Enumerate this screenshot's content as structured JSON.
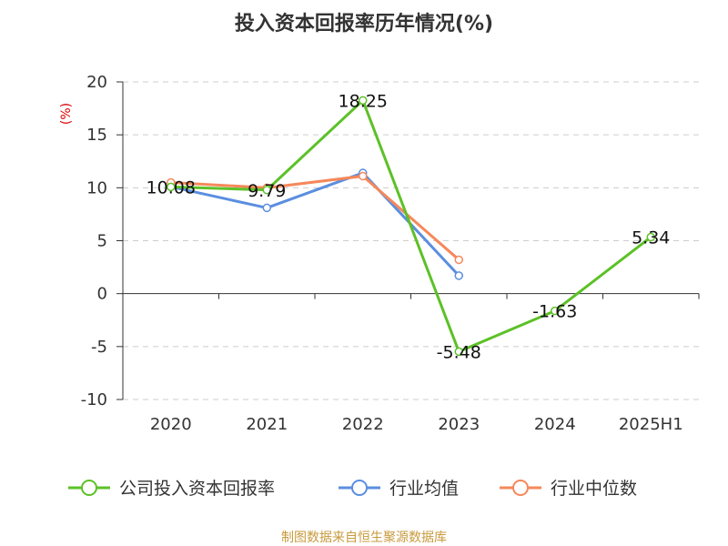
{
  "chart_data": {
    "type": "line",
    "title": "投入资本回报率历年情况(%)",
    "y_unit": "(%)",
    "categories": [
      "2020",
      "2021",
      "2022",
      "2023",
      "2024",
      "2025H1"
    ],
    "ylim": [
      -10,
      20
    ],
    "yticks": [
      -10,
      -5,
      0,
      5,
      10,
      15,
      20
    ],
    "grid": true,
    "legend_position": "bottom",
    "series": [
      {
        "name": "公司投入资本回报率",
        "color": "#5cc127",
        "values": [
          10.08,
          9.79,
          18.25,
          -5.48,
          -1.63,
          5.34
        ],
        "labels": [
          "10.08",
          "9.79",
          "18.25",
          "-5.48",
          "-1.63",
          "5.34"
        ]
      },
      {
        "name": "行业均值",
        "color": "#5b8ee0",
        "values": [
          10.1,
          8.1,
          11.4,
          1.7,
          null,
          null
        ]
      },
      {
        "name": "行业中位数",
        "color": "#f5885a",
        "values": [
          10.5,
          10.0,
          11.1,
          3.2,
          null,
          null
        ]
      }
    ]
  },
  "source_text": "制图数据来自恒生聚源数据库"
}
